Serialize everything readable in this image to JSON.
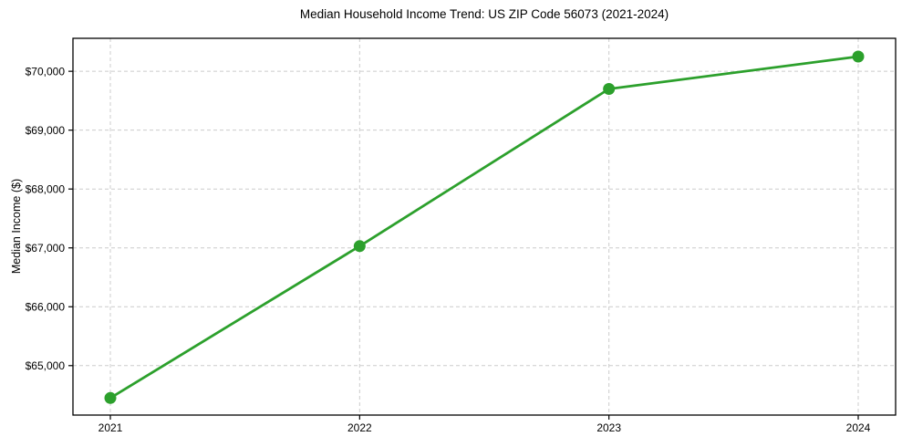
{
  "chart_data": {
    "type": "line",
    "title": "Median Household Income Trend: US ZIP Code 56073 (2021-2024)",
    "ylabel": "Median Income ($)",
    "xlabel": "",
    "x": [
      2021,
      2022,
      2023,
      2024
    ],
    "x_tick_labels": [
      "2021",
      "2022",
      "2023",
      "2024"
    ],
    "values": [
      64450,
      67030,
      69700,
      70250
    ],
    "y_ticks": [
      {
        "value": 65000,
        "label": "$65,000"
      },
      {
        "value": 66000,
        "label": "$66,000"
      },
      {
        "value": 67000,
        "label": "$67,000"
      },
      {
        "value": 68000,
        "label": "$68,000"
      },
      {
        "value": 69000,
        "label": "$69,000"
      },
      {
        "value": 70000,
        "label": "$70,000"
      }
    ],
    "ylim": [
      64160,
      70560
    ],
    "xlim": [
      2020.85,
      2024.15
    ],
    "grid": true,
    "grid_style": "dashed",
    "legend": "none",
    "colors": {
      "line": "#2ca02c",
      "marker": "#2ca02c",
      "grid": "#cccccc",
      "axis": "#000000",
      "text": "#000000",
      "background": "#ffffff"
    }
  }
}
